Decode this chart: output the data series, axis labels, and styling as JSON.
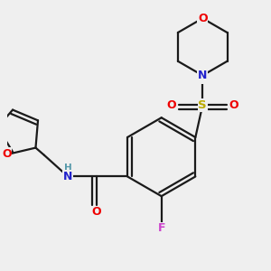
{
  "bg_color": "#efefef",
  "atom_colors": {
    "C": "#000000",
    "N": "#2222cc",
    "O": "#ee0000",
    "F": "#cc44cc",
    "S": "#bbaa00",
    "H": "#555555",
    "NH": "#5599aa"
  },
  "bond_color": "#1a1a1a",
  "bond_lw": 1.6,
  "xlim": [
    -0.05,
    1.05
  ],
  "ylim": [
    0.0,
    1.1
  ]
}
